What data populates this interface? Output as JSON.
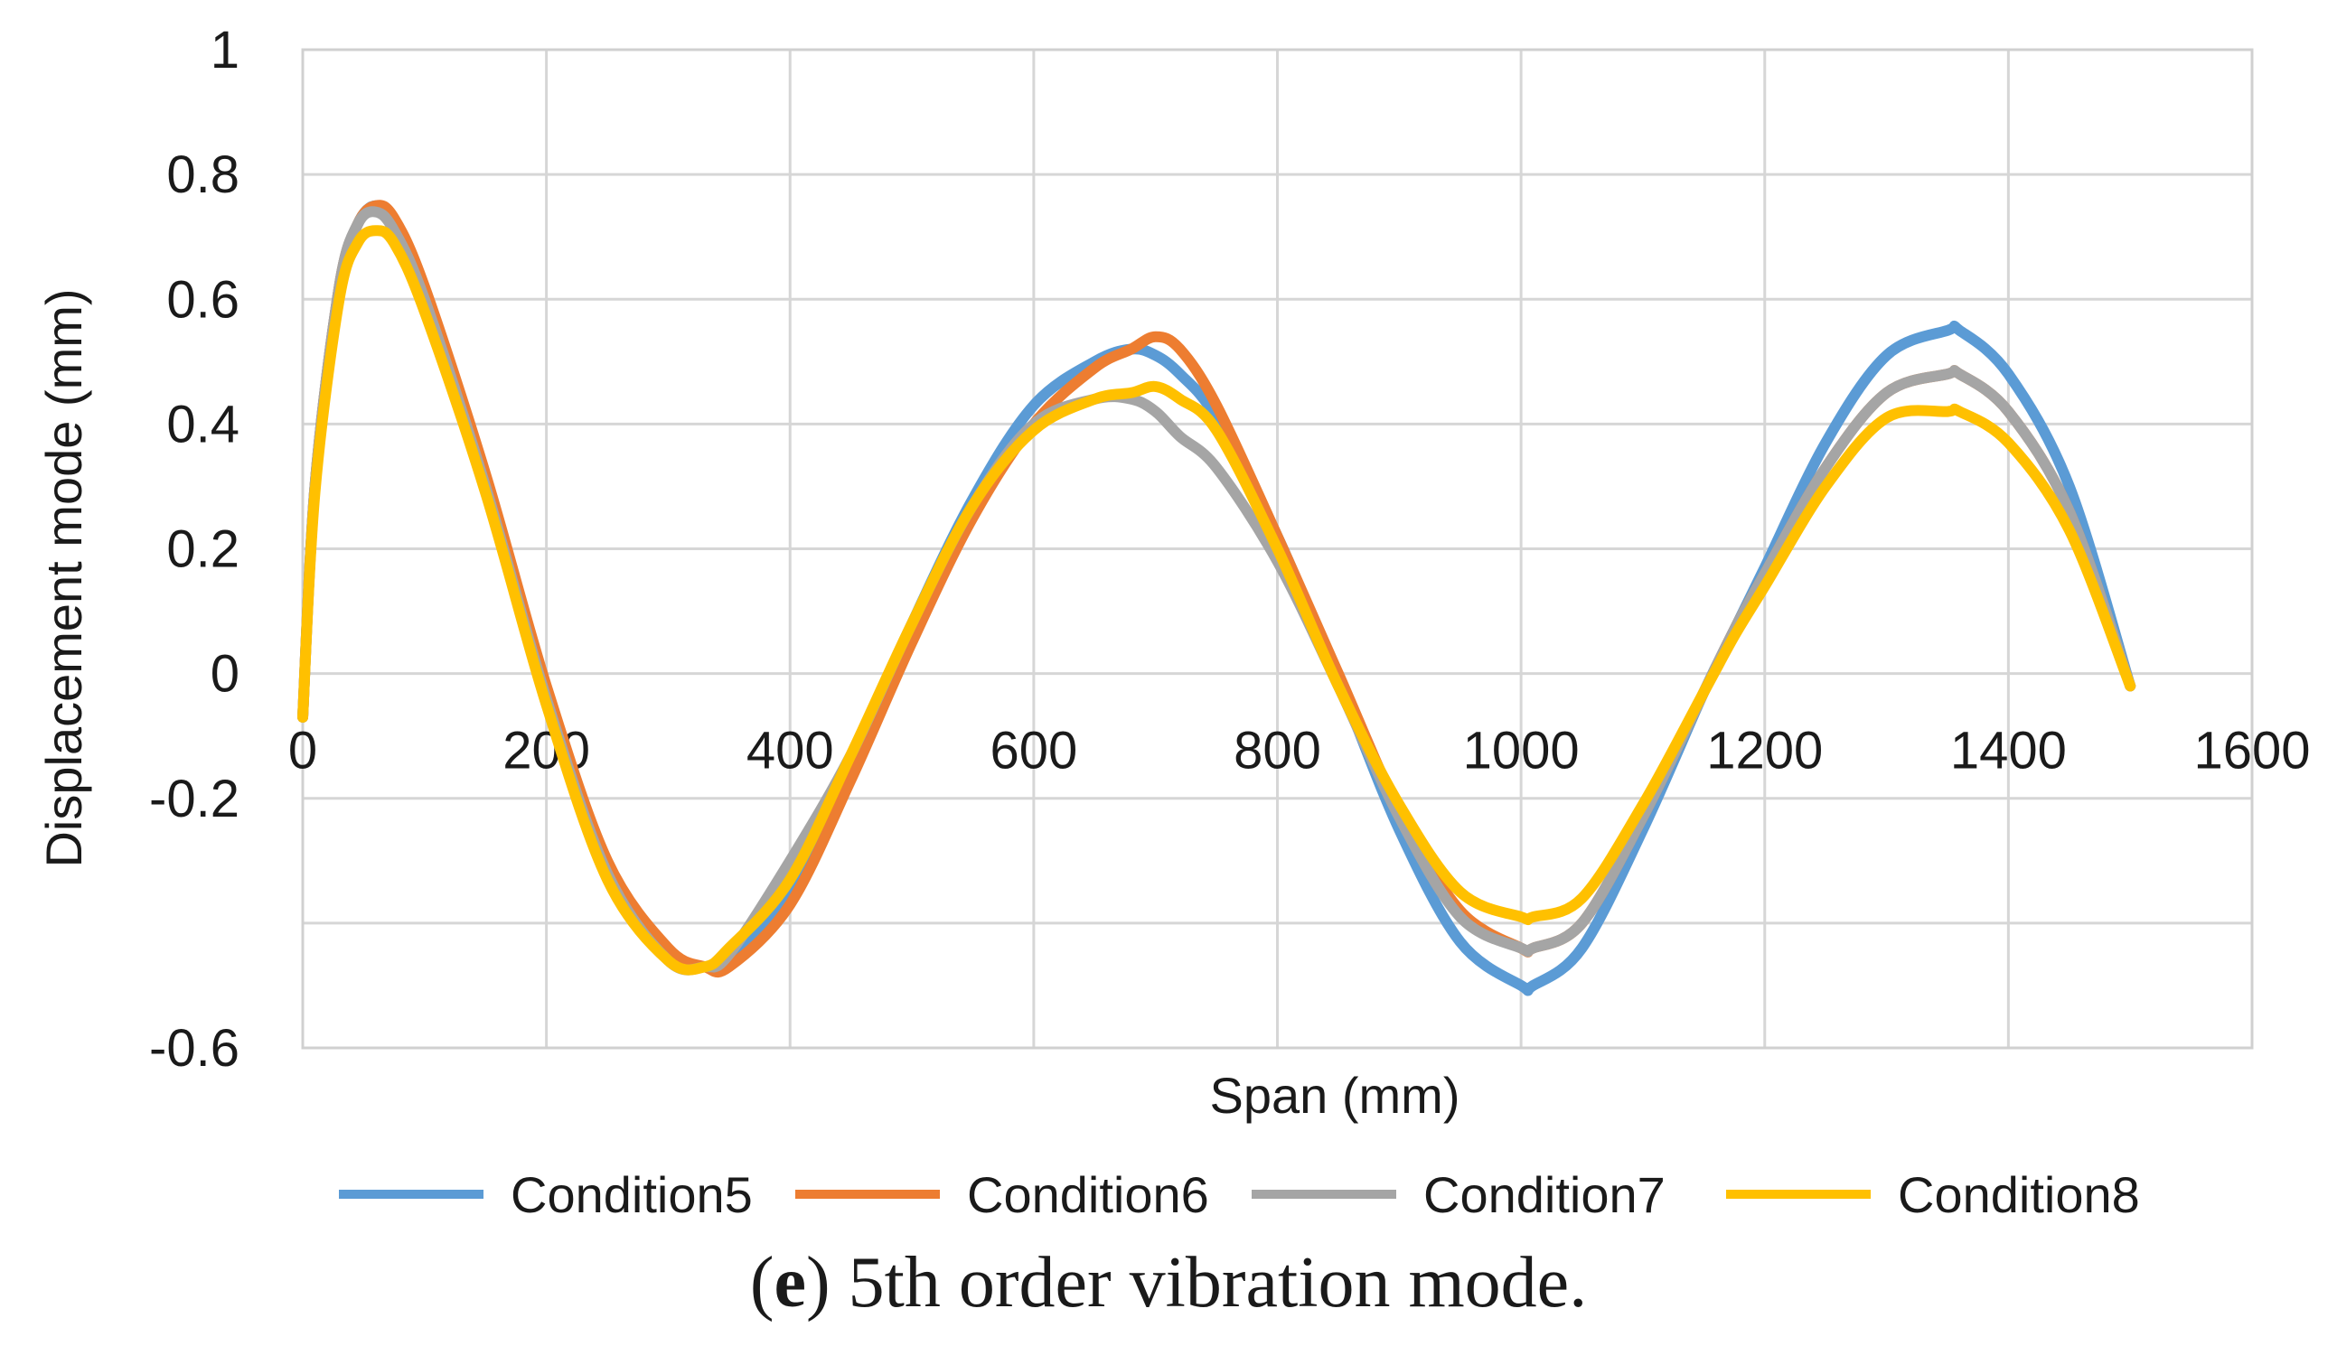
{
  "caption": {
    "open": "(",
    "letter": "e",
    "rest": ") 5th order vibration mode."
  },
  "chart_data": {
    "type": "line",
    "title": "",
    "xlabel": "Span (mm)",
    "ylabel": "Displacement mode (mm)",
    "xlim": [
      0,
      1600
    ],
    "ylim": [
      -0.6,
      1
    ],
    "x_ticks": [
      0,
      200,
      400,
      600,
      800,
      1000,
      1200,
      1400,
      1600
    ],
    "y_ticks": [
      -0.6,
      -0.4,
      -0.2,
      0,
      0.2,
      0.4,
      0.6,
      0.8,
      1
    ],
    "x_tick_labels": [
      "0",
      "200",
      "400",
      "600",
      "800",
      "1000",
      "1200",
      "1400",
      "1600"
    ],
    "y_tick_labels": [
      "-0.6",
      "",
      "-0.2",
      "0",
      "0.2",
      "0.4",
      "0.6",
      "0.8",
      "1"
    ],
    "grid": true,
    "legend_position": "bottom",
    "x": [
      0,
      10,
      30,
      45,
      60,
      75,
      100,
      150,
      200,
      250,
      300,
      330,
      350,
      400,
      450,
      500,
      550,
      600,
      650,
      680,
      700,
      720,
      750,
      800,
      850,
      900,
      950,
      1000,
      1010,
      1050,
      1100,
      1150,
      1175,
      1200,
      1250,
      1300,
      1350,
      1360,
      1400,
      1450,
      1500
    ],
    "series": [
      {
        "name": "Condition5",
        "color": "#5b9bd5",
        "values": [
          -0.07,
          0.3,
          0.62,
          0.72,
          0.75,
          0.72,
          0.6,
          0.3,
          -0.04,
          -0.32,
          -0.45,
          -0.47,
          -0.46,
          -0.34,
          -0.14,
          0.08,
          0.28,
          0.43,
          0.5,
          0.52,
          0.51,
          0.48,
          0.41,
          0.22,
          -0.01,
          -0.25,
          -0.43,
          -0.5,
          -0.5,
          -0.44,
          -0.25,
          -0.03,
          0.07,
          0.17,
          0.37,
          0.51,
          0.55,
          0.55,
          0.48,
          0.3,
          -0.02
        ]
      },
      {
        "name": "Condition6",
        "color": "#ed7d31",
        "values": [
          -0.07,
          0.3,
          0.62,
          0.72,
          0.75,
          0.73,
          0.62,
          0.32,
          -0.02,
          -0.3,
          -0.44,
          -0.47,
          -0.47,
          -0.37,
          -0.17,
          0.05,
          0.25,
          0.4,
          0.49,
          0.52,
          0.54,
          0.52,
          0.43,
          0.22,
          0.0,
          -0.22,
          -0.38,
          -0.44,
          -0.44,
          -0.4,
          -0.23,
          -0.03,
          0.07,
          0.16,
          0.33,
          0.45,
          0.48,
          0.48,
          0.42,
          0.26,
          -0.02
        ]
      },
      {
        "name": "Condition7",
        "color": "#a5a5a5",
        "values": [
          -0.07,
          0.3,
          0.62,
          0.72,
          0.74,
          0.71,
          0.6,
          0.3,
          -0.04,
          -0.32,
          -0.46,
          -0.47,
          -0.45,
          -0.3,
          -0.13,
          0.08,
          0.27,
          0.4,
          0.44,
          0.44,
          0.42,
          0.38,
          0.33,
          0.18,
          -0.02,
          -0.23,
          -0.39,
          -0.44,
          -0.44,
          -0.4,
          -0.23,
          -0.03,
          0.07,
          0.16,
          0.33,
          0.45,
          0.48,
          0.48,
          0.42,
          0.26,
          -0.02
        ]
      },
      {
        "name": "Condition8",
        "color": "#ffc000",
        "values": [
          -0.07,
          0.29,
          0.6,
          0.69,
          0.71,
          0.69,
          0.58,
          0.29,
          -0.05,
          -0.33,
          -0.46,
          -0.47,
          -0.44,
          -0.33,
          -0.13,
          0.08,
          0.27,
          0.39,
          0.44,
          0.45,
          0.46,
          0.44,
          0.39,
          0.2,
          -0.02,
          -0.21,
          -0.35,
          -0.39,
          -0.39,
          -0.36,
          -0.21,
          -0.03,
          0.06,
          0.14,
          0.3,
          0.41,
          0.42,
          0.42,
          0.37,
          0.23,
          -0.02
        ]
      }
    ]
  }
}
